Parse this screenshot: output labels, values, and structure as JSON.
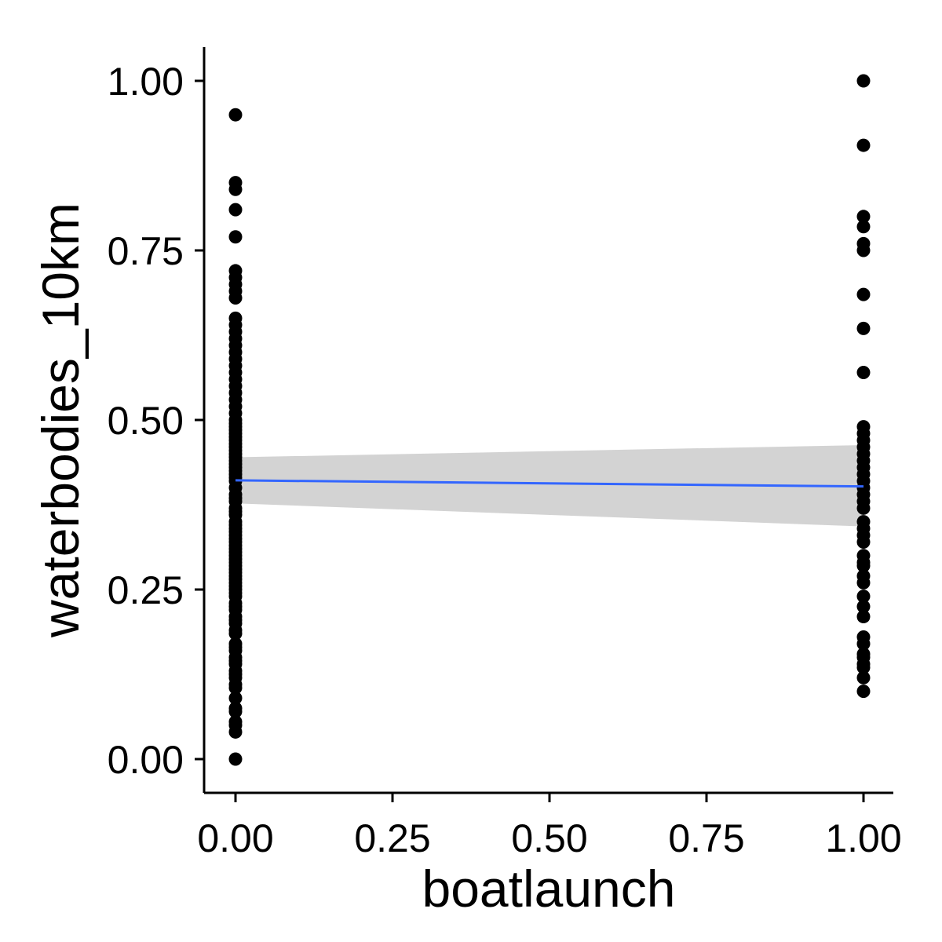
{
  "chart_data": {
    "type": "scatter",
    "title": "",
    "xlabel": "boatlaunch",
    "ylabel": "waterbodies_10km",
    "xlim": [
      -0.05,
      1.05
    ],
    "ylim": [
      -0.05,
      1.05
    ],
    "x_ticks": [
      0,
      0.25,
      0.5,
      0.75,
      1
    ],
    "x_tick_labels": [
      "0.00",
      "0.25",
      "0.50",
      "0.75",
      "1.00"
    ],
    "y_ticks": [
      0,
      0.25,
      0.5,
      0.75,
      1
    ],
    "y_tick_labels": [
      "0.00",
      "0.25",
      "0.50",
      "0.75",
      "1.00"
    ],
    "grid": false,
    "legend": "none",
    "series": [
      {
        "x": [
          0,
          0,
          0,
          0,
          0,
          0,
          0,
          0,
          0,
          0,
          0,
          0,
          0,
          0,
          0,
          0,
          0,
          0,
          0,
          0,
          0,
          0,
          0,
          0,
          0,
          0,
          0,
          0,
          0,
          0,
          0,
          0,
          0,
          0,
          0,
          0,
          0,
          0,
          0,
          0,
          0,
          0,
          0,
          0,
          0,
          0,
          0,
          0,
          0,
          0,
          0,
          0,
          0,
          0,
          0,
          0,
          0,
          0,
          0,
          0,
          0,
          0,
          0,
          0,
          0,
          0,
          0,
          0,
          0,
          0,
          0,
          0,
          0,
          0,
          0,
          0,
          0,
          0,
          0,
          0,
          0,
          0,
          0,
          0,
          0,
          0,
          0,
          0,
          0,
          0,
          0,
          0,
          0,
          0,
          0,
          0,
          0,
          0,
          0,
          0,
          1,
          1,
          1,
          1,
          1,
          1,
          1,
          1,
          1,
          1,
          1,
          1,
          1,
          1,
          1,
          1,
          1,
          1,
          1,
          1,
          1,
          1,
          1,
          1,
          1,
          1,
          1,
          1,
          1,
          1,
          1,
          1,
          1,
          1,
          1,
          1,
          1,
          1,
          1,
          1,
          1,
          1
        ],
        "y": [
          0.0,
          0.04,
          0.05,
          0.07,
          0.09,
          0.11,
          0.12,
          0.13,
          0.14,
          0.15,
          0.16,
          0.17,
          0.19,
          0.2,
          0.21,
          0.22,
          0.23,
          0.24,
          0.25,
          0.26,
          0.27,
          0.28,
          0.29,
          0.3,
          0.31,
          0.32,
          0.33,
          0.34,
          0.35,
          0.36,
          0.365,
          0.37,
          0.38,
          0.385,
          0.39,
          0.4,
          0.41,
          0.415,
          0.42,
          0.425,
          0.43,
          0.435,
          0.44,
          0.445,
          0.45,
          0.455,
          0.46,
          0.465,
          0.47,
          0.475,
          0.48,
          0.485,
          0.49,
          0.495,
          0.5,
          0.51,
          0.52,
          0.53,
          0.54,
          0.55,
          0.56,
          0.57,
          0.58,
          0.59,
          0.6,
          0.61,
          0.62,
          0.63,
          0.64,
          0.65,
          0.68,
          0.69,
          0.7,
          0.71,
          0.72,
          0.77,
          0.81,
          0.84,
          0.85,
          0.95,
          0.055,
          0.075,
          0.105,
          0.125,
          0.145,
          0.165,
          0.185,
          0.205,
          0.225,
          0.245,
          0.255,
          0.265,
          0.275,
          0.285,
          0.295,
          0.305,
          0.315,
          0.325,
          0.335,
          0.345,
          0.1,
          0.12,
          0.14,
          0.15,
          0.17,
          0.18,
          0.21,
          0.24,
          0.26,
          0.27,
          0.29,
          0.3,
          0.32,
          0.33,
          0.34,
          0.35,
          0.37,
          0.38,
          0.39,
          0.4,
          0.41,
          0.42,
          0.43,
          0.44,
          0.45,
          0.46,
          0.47,
          0.48,
          0.49,
          0.57,
          0.635,
          0.685,
          0.75,
          0.76,
          0.785,
          0.8,
          0.905,
          1.0,
          0.135,
          0.155,
          0.225,
          0.285
        ]
      }
    ],
    "fit": {
      "type": "linear",
      "x": [
        0,
        1
      ],
      "y": [
        0.411,
        0.402
      ],
      "ci_lower": [
        0.377,
        0.343
      ],
      "ci_upper": [
        0.445,
        0.463
      ],
      "line_color": "#3366ff",
      "band_color": "#d3d3d3"
    },
    "point_color": "#000000"
  }
}
